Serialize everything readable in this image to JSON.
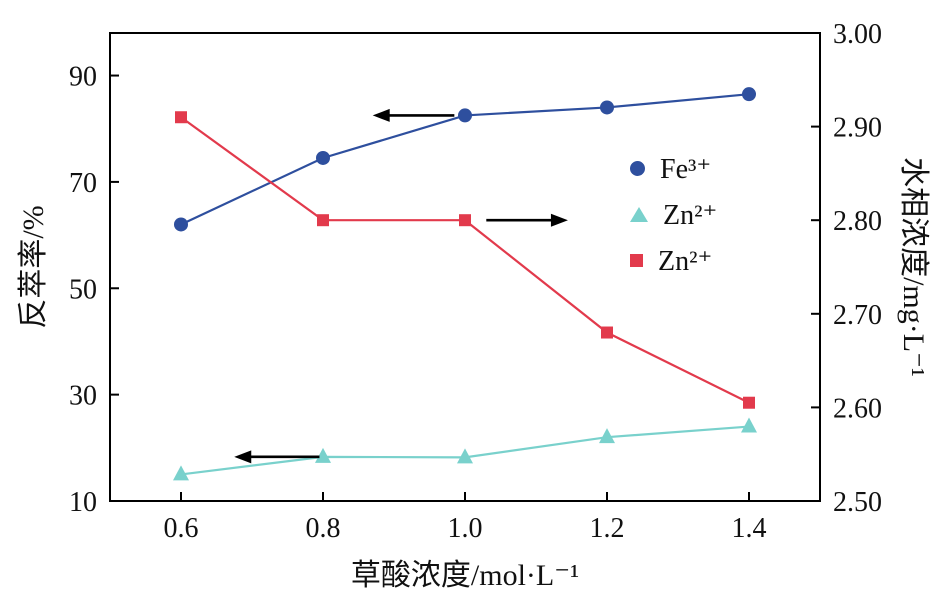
{
  "chart_data": {
    "type": "line",
    "title": "",
    "xlabel": "草酸浓度/mol·L⁻¹",
    "ylabel_left": "反萃率/%",
    "ylabel_right": "水相浓度/mg·L⁻¹",
    "xlim": [
      0.5,
      1.5
    ],
    "x_ticks": [
      0.6,
      0.8,
      1.0,
      1.2,
      1.4
    ],
    "x_tick_labels": [
      "0.6",
      "0.8",
      "1.0",
      "1.2",
      "1.4"
    ],
    "y_left_lim": [
      10,
      98
    ],
    "y_left_ticks": [
      10,
      30,
      50,
      70,
      90
    ],
    "y_left_tick_labels": [
      "10",
      "30",
      "50",
      "70",
      "90"
    ],
    "y_right_lim": [
      2.5,
      3.0
    ],
    "y_right_ticks": [
      2.5,
      2.6,
      2.7,
      2.8,
      2.9,
      3.0
    ],
    "y_right_tick_labels": [
      "2.50",
      "2.60",
      "2.70",
      "2.80",
      "2.90",
      "3.00"
    ],
    "grid": false,
    "legend_position": "middle-right",
    "series": [
      {
        "name": "Fe³⁺",
        "axis": "left",
        "marker": "circle",
        "color": "#2e4f9e",
        "x": [
          0.6,
          0.8,
          1.0,
          1.2,
          1.4
        ],
        "values": [
          62,
          74.5,
          82.5,
          84,
          86.5
        ]
      },
      {
        "name": "Zn²⁺",
        "axis": "left",
        "marker": "triangle",
        "color": "#79d1cc",
        "x": [
          0.6,
          0.8,
          1.0,
          1.2,
          1.4
        ],
        "values": [
          15,
          18.3,
          18.2,
          22,
          24
        ]
      },
      {
        "name": "Zn²⁺",
        "axis": "right",
        "marker": "square",
        "color": "#e23a4c",
        "x": [
          0.6,
          0.8,
          1.0,
          1.2,
          1.4
        ],
        "values": [
          2.91,
          2.8,
          2.8,
          2.68,
          2.605
        ]
      }
    ],
    "arrows": [
      {
        "axis": "left",
        "from": [
          0.985,
          82.5
        ],
        "to": [
          0.87,
          82.5
        ],
        "meaning": "Fe3+ curve reads on left axis"
      },
      {
        "axis": "right",
        "from": [
          1.03,
          2.8
        ],
        "to": [
          1.145,
          2.8
        ],
        "meaning": "red Zn2+ curve reads on right axis"
      },
      {
        "axis": "left",
        "from": [
          0.795,
          18.3
        ],
        "to": [
          0.675,
          18.3
        ],
        "meaning": "cyan Zn2+ curve reads on left axis"
      }
    ]
  }
}
